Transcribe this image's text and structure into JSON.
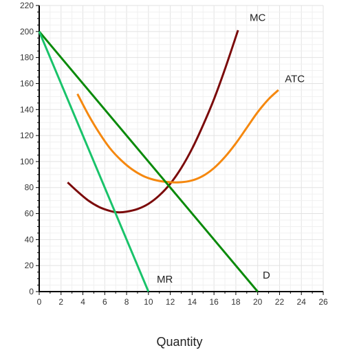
{
  "chart_data": {
    "type": "line",
    "xlabel": "Quantity",
    "ylabel": "",
    "xlim": [
      0,
      26
    ],
    "ylim": [
      0,
      220
    ],
    "x_ticks": [
      0,
      2,
      4,
      6,
      8,
      10,
      12,
      14,
      16,
      18,
      20,
      22,
      24,
      26
    ],
    "y_ticks": [
      0,
      20,
      40,
      60,
      80,
      100,
      120,
      140,
      160,
      180,
      200,
      220
    ],
    "grid": true,
    "series": [
      {
        "name": "MC",
        "color": "#7b0a0a",
        "points": [
          [
            2.6,
            84
          ],
          [
            3.5,
            77
          ],
          [
            4.5,
            70
          ],
          [
            5.5,
            65
          ],
          [
            6.5,
            62
          ],
          [
            7.2,
            61
          ],
          [
            8,
            61.5
          ],
          [
            9,
            63.5
          ],
          [
            10,
            67.5
          ],
          [
            11,
            74
          ],
          [
            12,
            83
          ],
          [
            13,
            95
          ],
          [
            14,
            110
          ],
          [
            15,
            128
          ],
          [
            16,
            148
          ],
          [
            17,
            171
          ],
          [
            18.2,
            201
          ]
        ]
      },
      {
        "name": "ATC",
        "color": "#f5880f",
        "points": [
          [
            3.5,
            152
          ],
          [
            4.5,
            136
          ],
          [
            5.5,
            122
          ],
          [
            6.5,
            110
          ],
          [
            7.5,
            101
          ],
          [
            8.5,
            94
          ],
          [
            9.5,
            89
          ],
          [
            10.5,
            86
          ],
          [
            11.5,
            84.5
          ],
          [
            12.8,
            84
          ],
          [
            14,
            85.5
          ],
          [
            15,
            89
          ],
          [
            16,
            95
          ],
          [
            17,
            103.5
          ],
          [
            18,
            114
          ],
          [
            19,
            126
          ],
          [
            20,
            138
          ],
          [
            21,
            148
          ],
          [
            21.9,
            155
          ]
        ]
      },
      {
        "name": "D",
        "color": "#0a8a0a",
        "points": [
          [
            0,
            200
          ],
          [
            20,
            0
          ]
        ]
      },
      {
        "name": "MR",
        "color": "#19c36a",
        "points": [
          [
            0,
            200
          ],
          [
            10,
            0
          ]
        ]
      }
    ]
  }
}
